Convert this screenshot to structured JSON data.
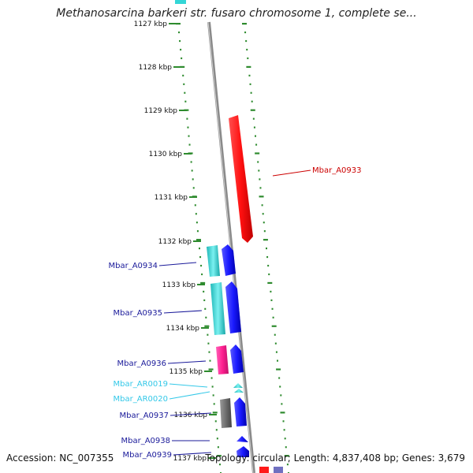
{
  "title": "Methanosarcina barkeri str. fusaro chromosome 1, complete se...",
  "accession": "Accession: NC_007355",
  "summary": "Topology: circular; Length: 4,837,408 bp; Genes: 3,679",
  "colors": {
    "backbone": "#8a8a8a",
    "ring": "#2e8b2e",
    "red": "#ff1a1a",
    "cyan": "#33d6d6",
    "blue": "#1a1aff",
    "magenta": "#ff2a9a",
    "gray": "#6e6e6e",
    "label_blue": "#1a1a9a",
    "label_cyan": "#33c8e8",
    "label_red": "#cc0000"
  },
  "ticks": [
    {
      "label": "1127 kbp"
    },
    {
      "label": "1128 kbp"
    },
    {
      "label": "1129 kbp"
    },
    {
      "label": "1130 kbp"
    },
    {
      "label": "1131 kbp"
    },
    {
      "label": "1132 kbp"
    },
    {
      "label": "1133 kbp"
    },
    {
      "label": "1134 kbp"
    },
    {
      "label": "1135 kbp"
    },
    {
      "label": "1136 kbp"
    },
    {
      "label": "1137 kbp"
    }
  ],
  "labels": [
    {
      "text": "Mbar_A0933",
      "color_key": "label_red"
    },
    {
      "text": "Mbar_A0934",
      "color_key": "label_blue"
    },
    {
      "text": "Mbar_A0935",
      "color_key": "label_blue"
    },
    {
      "text": "Mbar_A0936",
      "color_key": "label_blue"
    },
    {
      "text": "Mbar_AR0019",
      "color_key": "label_cyan"
    },
    {
      "text": "Mbar_AR0020",
      "color_key": "label_cyan"
    },
    {
      "text": "Mbar_A0937",
      "color_key": "label_blue"
    },
    {
      "text": "Mbar_A0938",
      "color_key": "label_blue"
    },
    {
      "text": "Mbar_A0939",
      "color_key": "label_blue"
    }
  ],
  "features": [
    {
      "name": "Mbar_A0933",
      "strand": "forward",
      "color_key": "red"
    },
    {
      "name": "Mbar_A0934",
      "strand": "reverse",
      "color_key": "cyan"
    },
    {
      "name": "Mbar_A0934",
      "strand": "forward",
      "color_key": "blue"
    },
    {
      "name": "Mbar_A0935",
      "strand": "reverse",
      "color_key": "cyan"
    },
    {
      "name": "Mbar_A0935",
      "strand": "forward",
      "color_key": "blue"
    },
    {
      "name": "Mbar_A0936",
      "strand": "reverse",
      "color_key": "magenta"
    },
    {
      "name": "Mbar_A0936",
      "strand": "forward",
      "color_key": "blue"
    },
    {
      "name": "Mbar_AR0019",
      "strand": "forward",
      "color_key": "cyan"
    },
    {
      "name": "Mbar_AR0020",
      "strand": "forward",
      "color_key": "cyan"
    },
    {
      "name": "Mbar_A0937",
      "strand": "reverse",
      "color_key": "gray"
    },
    {
      "name": "Mbar_A0937",
      "strand": "forward",
      "color_key": "blue"
    },
    {
      "name": "Mbar_A0938",
      "strand": "forward",
      "color_key": "blue"
    },
    {
      "name": "Mbar_A0939",
      "strand": "forward",
      "color_key": "blue"
    }
  ]
}
